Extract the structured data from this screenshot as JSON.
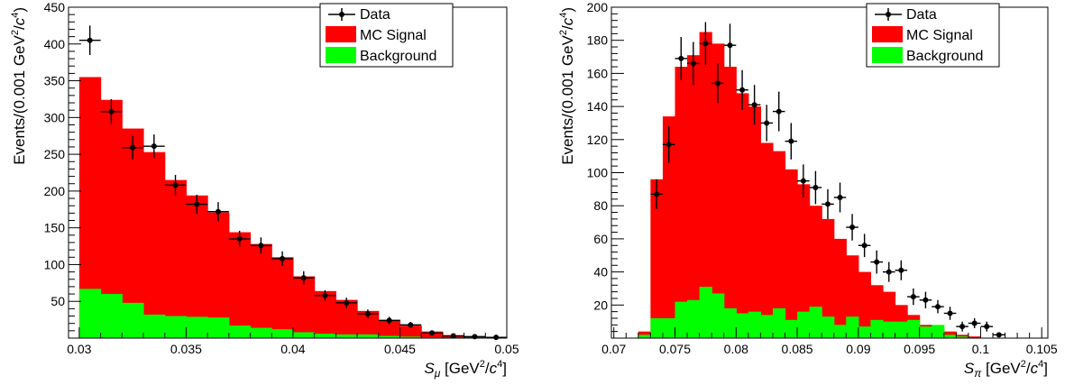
{
  "chart_data": [
    {
      "type": "bar",
      "panel": "left",
      "xlabel": {
        "main": "S",
        "sub": "μ",
        "unit_pre": " [GeV",
        "sup1": "2",
        "unit_mid": "/",
        "unit_var": "c",
        "sup2": "4",
        "unit_post": "]"
      },
      "ylabel": {
        "pre": "Events/(0.001 GeV",
        "sup1": "2",
        "mid": "/",
        "var": "c",
        "sup2": "4",
        "post": ")"
      },
      "xlim": [
        0.0295,
        0.05
      ],
      "ylim": [
        0,
        450
      ],
      "xticks": [
        0.03,
        0.035,
        0.04,
        0.045,
        0.05
      ],
      "xtick_labels": [
        "0.03",
        "0.035",
        "0.04",
        "0.045",
        "0.05"
      ],
      "yticks": [
        50,
        100,
        150,
        200,
        250,
        300,
        350,
        400,
        450
      ],
      "ytick_labels": [
        "50",
        "100",
        "150",
        "200",
        "250",
        "300",
        "350",
        "400",
        "450"
      ],
      "bin_width": 0.001,
      "bin_edges_start": 0.03,
      "series": [
        {
          "name": "MC Signal",
          "kind": "hist",
          "color": "#ff0000",
          "values": [
            355,
            324,
            285,
            253,
            215,
            194,
            171,
            144,
            128,
            110,
            84,
            64,
            52,
            37,
            25,
            17,
            9,
            4,
            2,
            1
          ]
        },
        {
          "name": "Background",
          "kind": "hist",
          "color": "#00ff00",
          "values": [
            67,
            60,
            48,
            32,
            30,
            29,
            28,
            17,
            14,
            12,
            8,
            6,
            5,
            5,
            3,
            2,
            1,
            0,
            0,
            0
          ]
        },
        {
          "name": "Data",
          "kind": "errorbar",
          "color": "#000000",
          "x": [
            0.0305,
            0.0315,
            0.0325,
            0.0335,
            0.0345,
            0.0355,
            0.0365,
            0.0375,
            0.0385,
            0.0395,
            0.0405,
            0.0415,
            0.0425,
            0.0435,
            0.0445,
            0.0455,
            0.0465,
            0.0475,
            0.0485,
            0.0495
          ],
          "y": [
            405,
            308,
            259,
            261,
            208,
            182,
            172,
            135,
            126,
            108,
            82,
            58,
            48,
            33,
            24,
            18,
            7,
            3,
            2,
            1
          ],
          "yerr": [
            20,
            17,
            16,
            16,
            14,
            13,
            13,
            11,
            11,
            10,
            9,
            7,
            7,
            6,
            5,
            4,
            3,
            2,
            1,
            1
          ]
        }
      ],
      "legend": [
        {
          "label": "Data",
          "kind": "errorbar"
        },
        {
          "label": "MC Signal",
          "kind": "fill",
          "color": "#ff0000"
        },
        {
          "label": "Background",
          "kind": "fill",
          "color": "#00ff00"
        }
      ]
    },
    {
      "type": "bar",
      "panel": "right",
      "xlabel": {
        "main": "S",
        "sub": "π",
        "unit_pre": " [GeV",
        "sup1": "2",
        "unit_mid": "/",
        "unit_var": "c",
        "sup2": "4",
        "unit_post": "]"
      },
      "ylabel": {
        "pre": "Events/(0.001 GeV",
        "sup1": "2",
        "mid": "/",
        "var": "c",
        "sup2": "4",
        "post": ")"
      },
      "xlim": [
        0.0698,
        0.1055
      ],
      "ylim": [
        0,
        200
      ],
      "xticks": [
        0.07,
        0.075,
        0.08,
        0.085,
        0.09,
        0.095,
        0.1,
        0.105
      ],
      "xtick_labels": [
        "0.07",
        "0.075",
        "0.08",
        "0.085",
        "0.09",
        "0.095",
        "0.1",
        "0.105"
      ],
      "yticks": [
        20,
        40,
        60,
        80,
        100,
        120,
        140,
        160,
        180,
        200
      ],
      "ytick_labels": [
        "20",
        "40",
        "60",
        "80",
        "100",
        "120",
        "140",
        "160",
        "180",
        "200"
      ],
      "bin_width": 0.001,
      "bin_edges_start": 0.072,
      "series": [
        {
          "name": "MC Signal",
          "kind": "hist",
          "color": "#ff0000",
          "values": [
            4,
            96,
            134,
            164,
            171,
            185,
            178,
            164,
            148,
            140,
            118,
            113,
            102,
            93,
            80,
            72,
            60,
            50,
            40,
            32,
            28,
            20,
            14,
            8,
            6,
            4,
            2,
            1
          ]
        },
        {
          "name": "Background",
          "kind": "hist",
          "color": "#00ff00",
          "values": [
            2,
            12,
            12,
            22,
            23,
            31,
            27,
            18,
            15,
            16,
            14,
            18,
            11,
            16,
            19,
            13,
            8,
            13,
            7,
            11,
            10,
            10,
            11,
            7,
            8,
            2,
            1,
            0
          ]
        },
        {
          "name": "Data",
          "kind": "errorbar",
          "color": "#000000",
          "x": [
            0.0735,
            0.0745,
            0.0755,
            0.0765,
            0.0775,
            0.0785,
            0.0795,
            0.0805,
            0.0815,
            0.0825,
            0.0835,
            0.0845,
            0.0855,
            0.0865,
            0.0875,
            0.0885,
            0.0895,
            0.0905,
            0.0915,
            0.0925,
            0.0935,
            0.0945,
            0.0955,
            0.0965,
            0.0975,
            0.0985,
            0.0995,
            0.1005,
            0.1015
          ],
          "y": [
            87,
            117,
            169,
            166,
            178,
            154,
            177,
            150,
            141,
            130,
            137,
            119,
            95,
            91,
            81,
            85,
            67,
            56,
            46,
            40,
            41,
            25,
            23,
            19,
            15,
            7,
            9,
            7,
            2
          ],
          "yerr": [
            9,
            11,
            13,
            13,
            13,
            12,
            13,
            12,
            12,
            11,
            12,
            11,
            10,
            10,
            9,
            9,
            8,
            7,
            7,
            6,
            6,
            5,
            5,
            4,
            4,
            3,
            3,
            3,
            1
          ]
        }
      ],
      "legend": [
        {
          "label": "Data",
          "kind": "errorbar"
        },
        {
          "label": "MC Signal",
          "kind": "fill",
          "color": "#ff0000"
        },
        {
          "label": "Background",
          "kind": "fill",
          "color": "#00ff00"
        }
      ]
    }
  ]
}
